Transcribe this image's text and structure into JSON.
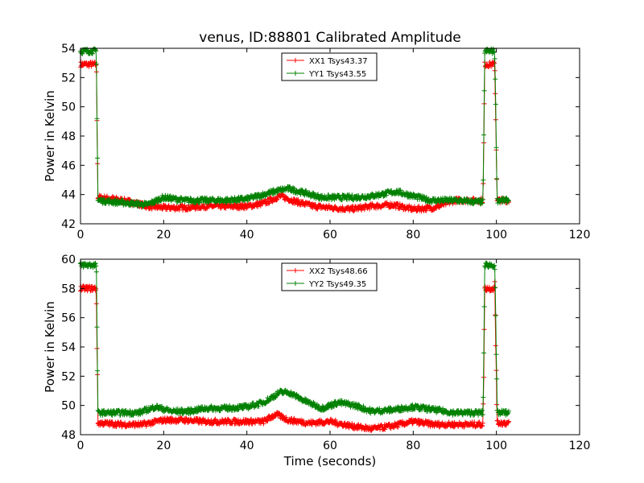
{
  "figure": {
    "title": "venus, ID:88801 Calibrated Amplitude",
    "xlabel": "Time (seconds)"
  },
  "colors": {
    "red": "#ff0000",
    "green": "#008000"
  },
  "chart_data": [
    {
      "type": "line",
      "title": "venus, ID:88801 Calibrated Amplitude",
      "xlabel": "",
      "ylabel": "Power in Kelvin",
      "xlim": [
        0,
        120
      ],
      "ylim": [
        42,
        54
      ],
      "xticks": [
        "0",
        "20",
        "40",
        "60",
        "80",
        "100",
        "120"
      ],
      "yticks": [
        "42",
        "44",
        "46",
        "48",
        "50",
        "52",
        "54"
      ],
      "grid": false,
      "legend_position": "top-center",
      "series": [
        {
          "name": "XX1 Tsys43.37",
          "color": "#ff0000",
          "marker": "+",
          "x": [
            0,
            2,
            3.8,
            4.2,
            8,
            12,
            16,
            20,
            25,
            30,
            35,
            40,
            44,
            48,
            52,
            56,
            60,
            65,
            70,
            75,
            80,
            85,
            90,
            95,
            96.8,
            97.2,
            99.6,
            100.2,
            103
          ],
          "y": [
            52.9,
            52.9,
            52.9,
            43.8,
            43.7,
            43.5,
            43.2,
            43.1,
            43.1,
            43.2,
            43.2,
            43.2,
            43.4,
            43.9,
            43.5,
            43.2,
            43.1,
            43.0,
            43.2,
            43.3,
            43.0,
            43.1,
            43.6,
            43.6,
            43.6,
            52.9,
            52.9,
            43.6,
            43.6
          ]
        },
        {
          "name": "YY1 Tsys43.55",
          "color": "#008000",
          "marker": "+",
          "x": [
            0,
            2,
            3.8,
            4.2,
            8,
            12,
            16,
            20,
            25,
            30,
            35,
            40,
            44,
            48,
            50,
            54,
            58,
            62,
            66,
            70,
            76,
            80,
            84,
            90,
            95,
            96.8,
            97.2,
            99.6,
            100.2,
            103
          ],
          "y": [
            53.8,
            53.8,
            53.8,
            43.6,
            43.5,
            43.4,
            43.3,
            43.8,
            43.6,
            43.6,
            43.6,
            43.7,
            44.0,
            44.3,
            44.4,
            44.1,
            43.8,
            43.8,
            43.8,
            43.9,
            44.2,
            43.9,
            43.6,
            43.6,
            43.5,
            43.5,
            53.8,
            53.8,
            43.6,
            43.6
          ]
        }
      ]
    },
    {
      "type": "line",
      "title": "",
      "xlabel": "Time (seconds)",
      "ylabel": "Power in Kelvin",
      "xlim": [
        0,
        120
      ],
      "ylim": [
        48,
        60
      ],
      "xticks": [
        "0",
        "20",
        "40",
        "60",
        "80",
        "100",
        "120"
      ],
      "yticks": [
        "48",
        "50",
        "52",
        "54",
        "56",
        "58",
        "60"
      ],
      "grid": false,
      "legend_position": "top-center",
      "series": [
        {
          "name": "XX2 Tsys48.66",
          "color": "#ff0000",
          "marker": "+",
          "x": [
            0,
            2,
            3.8,
            4.2,
            10,
            15,
            20,
            25,
            30,
            35,
            40,
            44,
            47,
            50,
            55,
            60,
            65,
            70,
            75,
            80,
            85,
            90,
            95,
            96.8,
            97.2,
            99.6,
            100.2,
            103
          ],
          "y": [
            58.0,
            58.0,
            58.0,
            48.8,
            48.7,
            48.7,
            49.0,
            49.0,
            48.9,
            48.9,
            48.9,
            48.9,
            49.4,
            49.0,
            48.8,
            48.9,
            48.6,
            48.4,
            48.6,
            48.9,
            48.7,
            48.7,
            48.7,
            48.7,
            58.0,
            58.0,
            48.8,
            48.8
          ]
        },
        {
          "name": "YY2 Tsys49.35",
          "color": "#008000",
          "marker": "+",
          "x": [
            0,
            2,
            3.8,
            4.2,
            8,
            14,
            18,
            22,
            26,
            30,
            35,
            40,
            44,
            48,
            50,
            54,
            58,
            62,
            66,
            70,
            75,
            80,
            85,
            90,
            95,
            96.8,
            97.2,
            99.6,
            100.2,
            103
          ],
          "y": [
            59.6,
            59.6,
            59.6,
            49.5,
            49.5,
            49.5,
            49.9,
            49.6,
            49.6,
            49.8,
            49.8,
            49.9,
            50.2,
            50.9,
            50.9,
            50.3,
            49.8,
            50.2,
            50.0,
            49.6,
            49.7,
            49.9,
            49.7,
            49.5,
            49.5,
            49.5,
            59.6,
            59.6,
            49.5,
            49.5
          ]
        }
      ]
    }
  ]
}
